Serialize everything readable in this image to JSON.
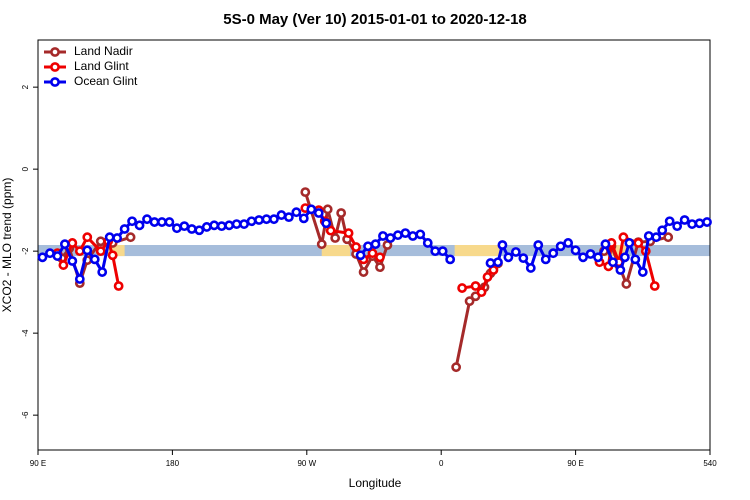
{
  "chart_data": {
    "type": "line",
    "title": "5S-0 May (Ver 10)   2015-01-01 to 2020-12-18",
    "x_label": "Longitude",
    "y_label": "XCO2 - MLO trend (ppm)",
    "xlim": [
      90,
      540
    ],
    "xticks": [
      {
        "value": 90,
        "label": "90 E"
      },
      180,
      {
        "value": 270,
        "label": "90 W"
      },
      {
        "value": 360,
        "label": "0"
      },
      {
        "value": 450,
        "label": "90 E"
      },
      540
    ],
    "ylim": [
      -6.85,
      3.15
    ],
    "yticks": [
      -6,
      -4,
      -2,
      0,
      2
    ],
    "legend": "top-left",
    "band": {
      "y": [
        -2.12,
        -1.85
      ],
      "color": "#a6bddb",
      "highlight_x": [
        [
          137,
          148
        ],
        [
          280,
          299
        ],
        [
          369,
          399
        ],
        [
          467,
          484
        ]
      ],
      "highlight_color": "#f7d98c"
    },
    "series": [
      {
        "name": "Land Nadir",
        "color": "#a52a2a",
        "x": [
          106,
          111,
          118,
          123,
          132,
          140,
          152,
          null,
          269,
          280,
          284,
          289,
          293,
          297,
          303,
          308,
          314,
          319,
          324,
          null,
          370,
          379,
          383,
          389,
          393,
          398,
          null,
          469,
          474,
          479,
          484,
          492,
          500,
          512
        ],
        "values": [
          -2.17,
          -1.93,
          -2.78,
          -2.22,
          -1.76,
          -1.8,
          -1.66,
          null,
          -0.56,
          -1.83,
          -0.98,
          -1.68,
          -1.07,
          -1.71,
          -2.07,
          -2.51,
          -2.12,
          -2.39,
          -1.85,
          null,
          -4.83,
          -3.22,
          -3.1,
          -2.88,
          -2.54,
          -2.3,
          null,
          -2.0,
          -1.88,
          -2.34,
          -2.8,
          -1.78,
          -1.76,
          -1.66
        ]
      },
      {
        "name": "Land Glint",
        "color": "#ee0000",
        "x": [
          103,
          107,
          113,
          118,
          123,
          132,
          137,
          140,
          144,
          null,
          269,
          278,
          282,
          286,
          298,
          303,
          308,
          314,
          319,
          null,
          374,
          383,
          387,
          391,
          395,
          null,
          466,
          472,
          474,
          479,
          482,
          492,
          497,
          503
        ],
        "values": [
          -2.05,
          -2.34,
          -1.8,
          -2.0,
          -1.66,
          -2.0,
          -1.76,
          -2.1,
          -2.85,
          null,
          -0.95,
          -1.0,
          -1.27,
          -1.5,
          -1.56,
          -1.9,
          -2.2,
          -2.05,
          -2.15,
          null,
          -2.9,
          -2.85,
          -3.0,
          -2.63,
          -2.46,
          null,
          -2.27,
          -2.37,
          -1.8,
          -2.27,
          -1.66,
          -1.8,
          -2.0,
          -2.85
        ]
      },
      {
        "name": "Ocean Glint",
        "color": "#0000ee",
        "x": [
          93,
          98,
          103,
          108,
          113,
          118,
          123,
          128,
          133,
          138,
          143,
          148,
          153,
          158,
          163,
          168,
          173,
          178,
          183,
          188,
          193,
          198,
          203,
          208,
          213,
          218,
          223,
          228,
          233,
          238,
          243,
          248,
          253,
          258,
          263,
          268,
          273,
          278,
          283,
          null,
          306,
          311,
          316,
          321,
          326,
          331,
          336,
          341,
          346,
          351,
          356,
          361,
          366,
          null,
          393,
          398,
          401,
          405,
          410,
          415,
          420,
          425,
          430,
          435,
          440,
          445,
          450,
          455,
          460,
          465,
          470,
          475,
          480,
          483,
          486,
          490,
          495,
          499,
          504,
          508,
          513,
          518,
          523,
          528,
          533,
          538
        ],
        "values": [
          -2.15,
          -2.05,
          -2.12,
          -1.83,
          -2.24,
          -2.68,
          -1.98,
          -2.2,
          -2.51,
          -1.66,
          -1.68,
          -1.46,
          -1.27,
          -1.37,
          -1.22,
          -1.29,
          -1.29,
          -1.29,
          -1.44,
          -1.39,
          -1.46,
          -1.49,
          -1.41,
          -1.37,
          -1.39,
          -1.37,
          -1.34,
          -1.34,
          -1.27,
          -1.24,
          -1.22,
          -1.22,
          -1.12,
          -1.17,
          -1.05,
          -1.2,
          -0.98,
          -1.07,
          -1.32,
          null,
          -2.1,
          -1.88,
          -1.83,
          -1.63,
          -1.68,
          -1.61,
          -1.56,
          -1.63,
          -1.59,
          -1.8,
          -2.0,
          -2.0,
          -2.2,
          null,
          -2.29,
          -2.27,
          -1.85,
          -2.15,
          -2.02,
          -2.17,
          -2.41,
          -1.85,
          -2.2,
          -2.05,
          -1.88,
          -1.8,
          -1.98,
          -2.15,
          -2.07,
          -2.15,
          -1.83,
          -2.27,
          -2.46,
          -2.15,
          -1.8,
          -2.2,
          -2.51,
          -1.63,
          -1.66,
          -1.49,
          -1.27,
          -1.39,
          -1.24,
          -1.34,
          -1.32,
          -1.29
        ]
      }
    ]
  }
}
